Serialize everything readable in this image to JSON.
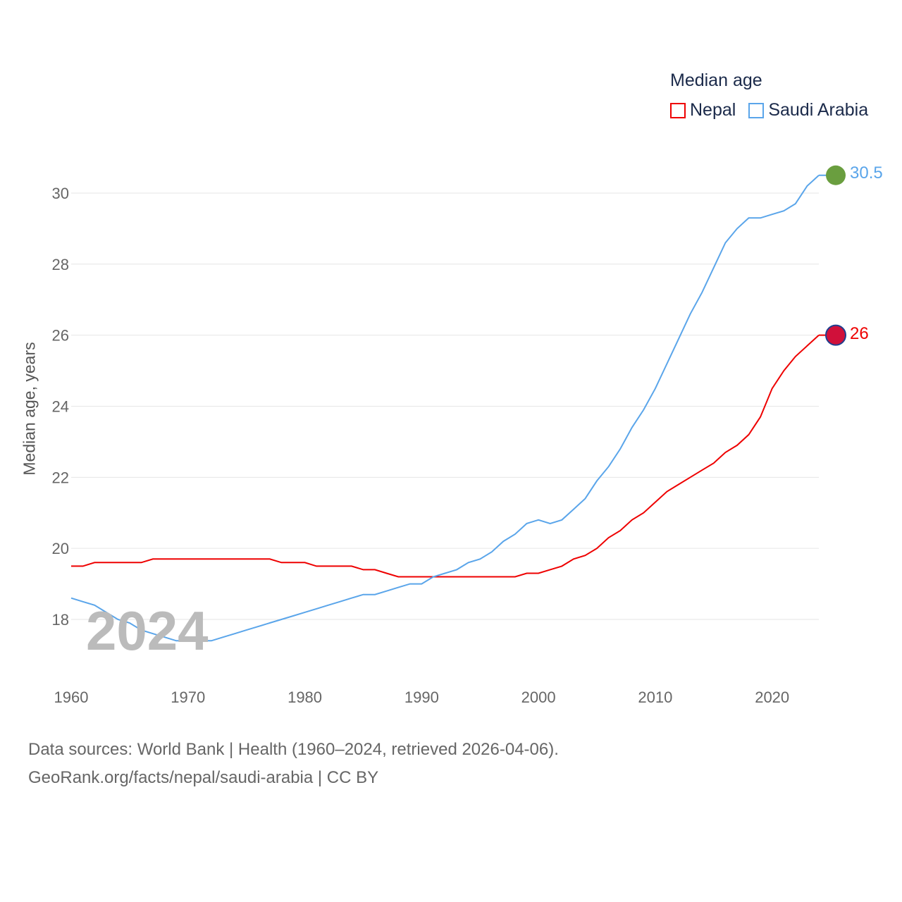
{
  "chart_data": {
    "type": "line",
    "title": "Median age",
    "xlabel": "",
    "ylabel": "Median age, years",
    "xlim": [
      1960,
      2024
    ],
    "ylim": [
      16.4,
      31
    ],
    "x_ticks": [
      1960,
      1970,
      1980,
      1990,
      2000,
      2010,
      2020
    ],
    "y_ticks": [
      18,
      20,
      22,
      24,
      26,
      28,
      30
    ],
    "grid": true,
    "legend_position": "top-right",
    "x": [
      1960,
      1961,
      1962,
      1963,
      1964,
      1965,
      1966,
      1967,
      1968,
      1969,
      1970,
      1971,
      1972,
      1973,
      1974,
      1975,
      1976,
      1977,
      1978,
      1979,
      1980,
      1981,
      1982,
      1983,
      1984,
      1985,
      1986,
      1987,
      1988,
      1989,
      1990,
      1991,
      1992,
      1993,
      1994,
      1995,
      1996,
      1997,
      1998,
      1999,
      2000,
      2001,
      2002,
      2003,
      2004,
      2005,
      2006,
      2007,
      2008,
      2009,
      2010,
      2011,
      2012,
      2013,
      2014,
      2015,
      2016,
      2017,
      2018,
      2019,
      2020,
      2021,
      2022,
      2023,
      2024
    ],
    "series": [
      {
        "name": "Nepal",
        "color": "#ee0000",
        "end_label": "26",
        "values": [
          19.5,
          19.5,
          19.6,
          19.6,
          19.6,
          19.6,
          19.6,
          19.7,
          19.7,
          19.7,
          19.7,
          19.7,
          19.7,
          19.7,
          19.7,
          19.7,
          19.7,
          19.7,
          19.6,
          19.6,
          19.6,
          19.5,
          19.5,
          19.5,
          19.5,
          19.4,
          19.4,
          19.3,
          19.2,
          19.2,
          19.2,
          19.2,
          19.2,
          19.2,
          19.2,
          19.2,
          19.2,
          19.2,
          19.2,
          19.3,
          19.3,
          19.4,
          19.5,
          19.7,
          19.8,
          20.0,
          20.3,
          20.5,
          20.8,
          21.0,
          21.3,
          21.6,
          21.8,
          22.0,
          22.2,
          22.4,
          22.7,
          22.9,
          23.2,
          23.7,
          24.5,
          25.0,
          25.4,
          25.7,
          26.0
        ]
      },
      {
        "name": "Saudi Arabia",
        "color": "#5aa5ea",
        "end_label": "30.5",
        "values": [
          18.6,
          18.5,
          18.4,
          18.2,
          18.0,
          17.9,
          17.7,
          17.6,
          17.5,
          17.4,
          17.4,
          17.4,
          17.4,
          17.5,
          17.6,
          17.7,
          17.8,
          17.9,
          18.0,
          18.1,
          18.2,
          18.3,
          18.4,
          18.5,
          18.6,
          18.7,
          18.7,
          18.8,
          18.9,
          19.0,
          19.0,
          19.2,
          19.3,
          19.4,
          19.6,
          19.7,
          19.9,
          20.2,
          20.4,
          20.7,
          20.8,
          20.7,
          20.8,
          21.1,
          21.4,
          21.9,
          22.3,
          22.8,
          23.4,
          23.9,
          24.5,
          25.2,
          25.9,
          26.6,
          27.2,
          27.9,
          28.6,
          29.0,
          29.3,
          29.3,
          29.4,
          29.5,
          29.7,
          30.2,
          30.5
        ]
      }
    ],
    "annotation": "2024"
  },
  "source": {
    "line1": "Data sources: World Bank | Health (1960–2024, retrieved 2026-04-06).",
    "line2": "GeoRank.org/facts/nepal/saudi-arabia | CC BY"
  }
}
